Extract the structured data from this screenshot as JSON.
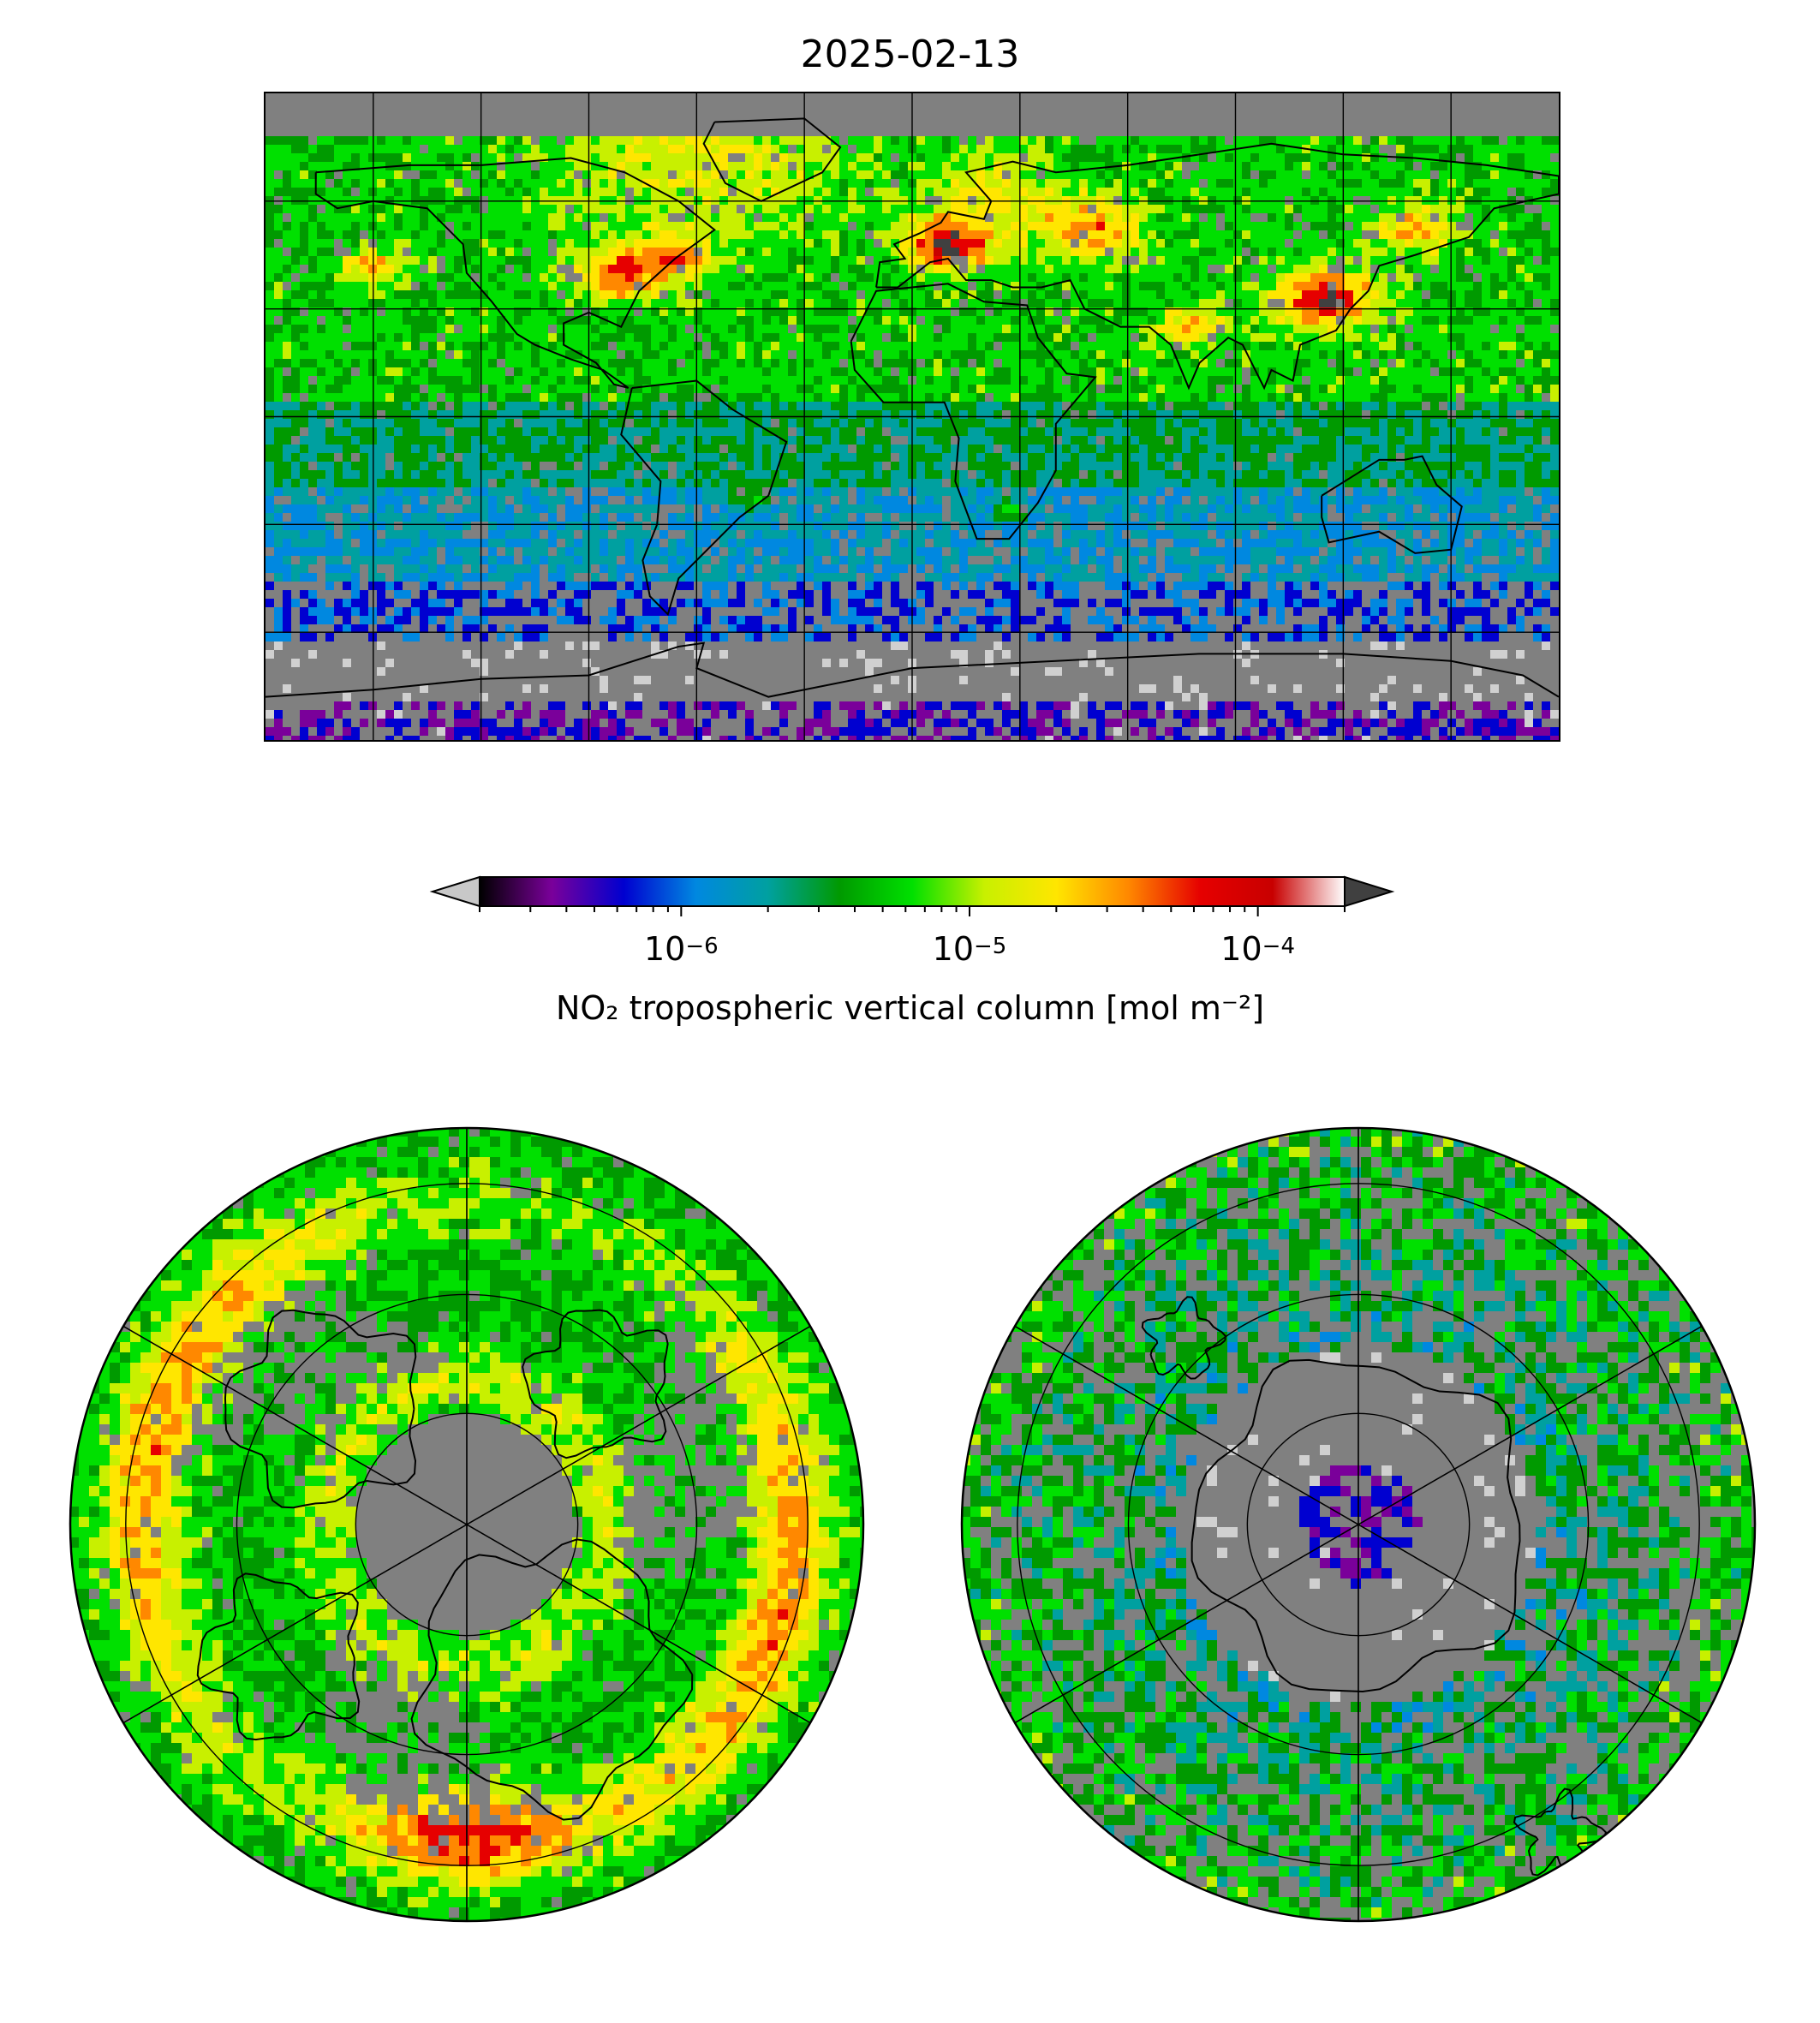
{
  "title": "2025-02-13",
  "colorbar": {
    "label": "NO₂ tropospheric vertical column [mol m⁻²]",
    "scale": "log",
    "range": [
      2e-07,
      0.0002
    ],
    "extend": "both",
    "under_color": "#c8c8c8",
    "over_color": "#404040",
    "ticks": [
      {
        "base": "10",
        "exp": "−6",
        "value": 1e-06
      },
      {
        "base": "10",
        "exp": "−5",
        "value": 1e-05
      },
      {
        "base": "10",
        "exp": "−4",
        "value": 0.0001
      }
    ],
    "stops": [
      "#000000",
      "#7a009a",
      "#0000d0",
      "#0088e0",
      "#00a0a0",
      "#009a00",
      "#00e000",
      "#c8f000",
      "#ffe600",
      "#ff8800",
      "#e60000",
      "#c80000",
      "#ffffff"
    ]
  },
  "colors": {
    "missing": "#808080",
    "coastline": "#000000",
    "gridline": "#000000"
  },
  "panels": [
    {
      "id": "world-map",
      "projection": "plate-carree",
      "extent": "global"
    },
    {
      "id": "north-polar",
      "projection": "north-polar-stereographic"
    },
    {
      "id": "south-polar",
      "projection": "south-polar-stereographic"
    }
  ]
}
